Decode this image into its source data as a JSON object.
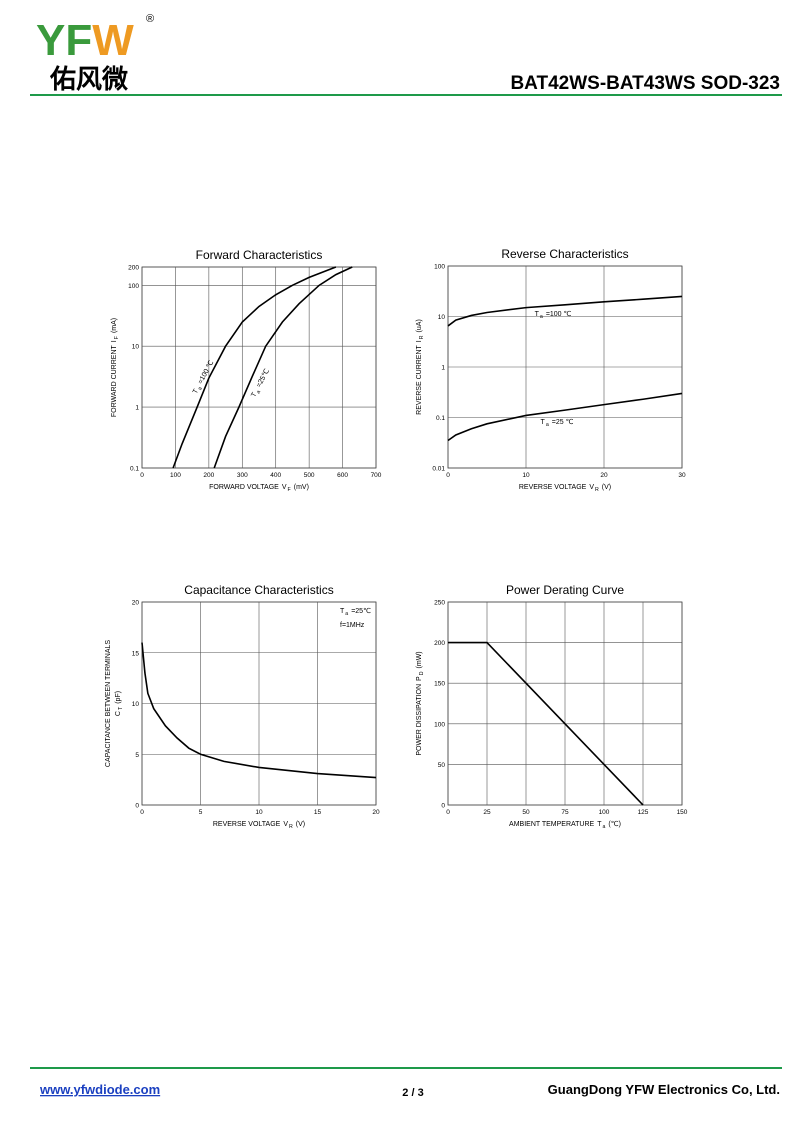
{
  "header": {
    "logo": {
      "left": "YF",
      "right": "W"
    },
    "logo_mark": "®",
    "logo_cn": "佑风微",
    "title": "BAT42WS-BAT43WS  SOD-323"
  },
  "footer": {
    "website": "www.yfwdiode.com",
    "page": "2 / 3",
    "company": "GuangDong YFW Electronics Co, Ltd."
  },
  "chart_data": [
    {
      "type": "line",
      "title": "Forward    Characteristics",
      "log_y": true,
      "grid": true,
      "x_label": [
        {
          "text": "FORWARD VOLTAGE"
        },
        {
          "text": "V"
        },
        {
          "text": "F",
          "sub": true
        },
        {
          "text": "(mV)"
        }
      ],
      "y_label": [
        [
          {
            "text": "FORWARD CURRENT"
          },
          {
            "text": "I"
          },
          {
            "text": "F",
            "sub": true
          },
          {
            "text": "(mA)"
          }
        ]
      ],
      "xlim": [
        0,
        700
      ],
      "xticks": [
        0,
        100,
        200,
        300,
        400,
        500,
        600,
        700
      ],
      "ylim": [
        0.1,
        200
      ],
      "yticks": [
        0.1,
        1,
        10,
        100,
        200
      ],
      "series": [
        {
          "label": [
            {
              "text": "T"
            },
            {
              "text": "a",
              "sub": true
            },
            {
              "text": "=100 ℃"
            }
          ],
          "color": "#000000",
          "x": [
            93,
            120,
            165,
            200,
            250,
            300,
            350,
            400,
            450,
            500,
            580
          ],
          "values": [
            0.1,
            0.25,
            1,
            3,
            10,
            25,
            45,
            70,
            100,
            135,
            200
          ]
        },
        {
          "label": [
            {
              "text": "T"
            },
            {
              "text": "a",
              "sub": true
            },
            {
              "text": "=25℃"
            }
          ],
          "color": "#000000",
          "x": [
            216,
            250,
            290,
            330,
            370,
            420,
            470,
            530,
            580,
            629
          ],
          "values": [
            0.1,
            0.33,
            1,
            3.2,
            10,
            25,
            50,
            100,
            150,
            200
          ]
        }
      ]
    },
    {
      "type": "line",
      "title": "Reverse    Characteristics",
      "log_y": true,
      "grid": true,
      "x_label": [
        {
          "text": "REVERSE VOLTAGE"
        },
        {
          "text": "V"
        },
        {
          "text": "R",
          "sub": true
        },
        {
          "text": "(V)"
        }
      ],
      "y_label": [
        [
          {
            "text": "REVERSE CURRENT"
          },
          {
            "text": "I"
          },
          {
            "text": "R",
            "sub": true
          },
          {
            "text": "(uA)"
          }
        ]
      ],
      "xlim": [
        0,
        30
      ],
      "xticks": [
        0,
        10,
        20,
        30
      ],
      "ylim": [
        0.01,
        100
      ],
      "yticks": [
        0.01,
        0.1,
        1,
        10,
        100
      ],
      "series": [
        {
          "label": [
            {
              "text": "T"
            },
            {
              "text": "a",
              "sub": true
            },
            {
              "text": "=100 ℃"
            }
          ],
          "color": "#000000",
          "x": [
            0,
            1,
            3,
            5,
            10,
            15,
            20,
            25,
            30
          ],
          "values": [
            6.5,
            8.5,
            10.5,
            12,
            15,
            17,
            19.5,
            22,
            25
          ]
        },
        {
          "label": [
            {
              "text": "T"
            },
            {
              "text": "a",
              "sub": true
            },
            {
              "text": "=25 ℃"
            }
          ],
          "color": "#000000",
          "x": [
            0,
            1,
            3,
            5,
            10,
            15,
            20,
            25,
            30
          ],
          "values": [
            0.035,
            0.045,
            0.06,
            0.075,
            0.11,
            0.14,
            0.18,
            0.23,
            0.3
          ]
        }
      ]
    },
    {
      "type": "line",
      "title": "Capacitance Characteristics",
      "log_y": false,
      "grid": true,
      "x_label": [
        {
          "text": "REVERSE VOLTAGE"
        },
        {
          "text": "V"
        },
        {
          "text": "R",
          "sub": true
        },
        {
          "text": "(V)"
        }
      ],
      "y_label": [
        [
          {
            "text": "CAPACITANCE BETWEEN TERMINALS"
          }
        ],
        [
          {
            "text": "C"
          },
          {
            "text": "T",
            "sub": true
          },
          {
            "text": "(pF)"
          }
        ]
      ],
      "xlim": [
        0,
        20
      ],
      "xticks": [
        0,
        5,
        10,
        15,
        20
      ],
      "ylim": [
        0,
        20
      ],
      "yticks": [
        0,
        5,
        10,
        15,
        20
      ],
      "annotations": [
        [
          {
            "text": "T"
          },
          {
            "text": "a",
            "sub": true
          },
          {
            "text": "=25℃"
          }
        ],
        [
          {
            "text": "f=1MHz"
          }
        ]
      ],
      "series": [
        {
          "color": "#000000",
          "x": [
            0,
            0.25,
            0.5,
            1,
            2,
            3,
            4,
            5,
            7,
            10,
            15,
            20
          ],
          "values": [
            16,
            13,
            11,
            9.5,
            7.8,
            6.6,
            5.6,
            5.0,
            4.3,
            3.7,
            3.1,
            2.7
          ]
        }
      ]
    },
    {
      "type": "line",
      "title": "Power Derating Curve",
      "log_y": false,
      "grid": true,
      "x_label": [
        {
          "text": "AMBIENT TEMPERATURE"
        },
        {
          "text": "T"
        },
        {
          "text": "a",
          "sub": true
        },
        {
          "text": "(℃)"
        }
      ],
      "y_label": [
        [
          {
            "text": "POWER DISSIPATION"
          },
          {
            "text": "P"
          },
          {
            "text": "D",
            "sub": true
          },
          {
            "text": "(mW)"
          }
        ]
      ],
      "xlim": [
        0,
        150
      ],
      "xticks": [
        0,
        25,
        50,
        75,
        100,
        125,
        150
      ],
      "ylim": [
        0,
        250
      ],
      "yticks": [
        0,
        50,
        100,
        150,
        200,
        250
      ],
      "series": [
        {
          "color": "#000000",
          "x": [
            0,
            25,
            125
          ],
          "values": [
            200,
            200,
            0
          ]
        }
      ]
    }
  ]
}
